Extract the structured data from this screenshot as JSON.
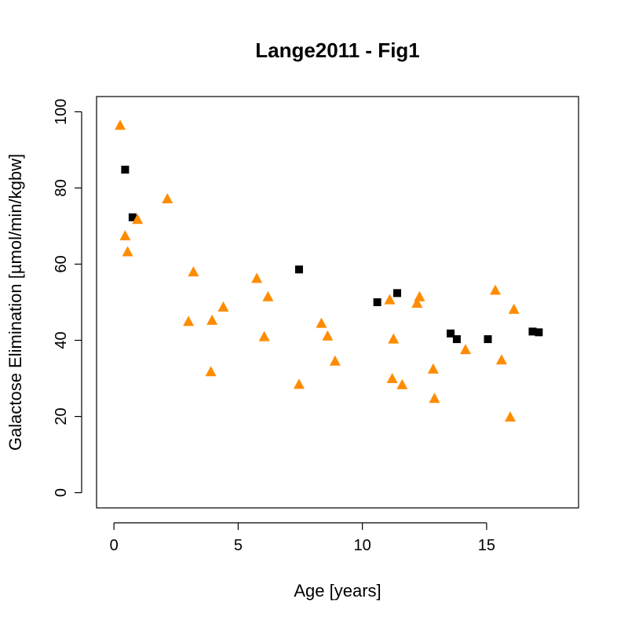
{
  "chart_data": {
    "type": "scatter",
    "title": "Lange2011 - Fig1",
    "xlabel": "Age [years]",
    "ylabel": "Galactose Elimination [µmol/min/kgbw]",
    "xlim": [
      -0.7,
      18.7
    ],
    "ylim": [
      -4,
      104
    ],
    "xticks": [
      0,
      5,
      10,
      15
    ],
    "yticks": [
      0,
      20,
      40,
      60,
      80,
      100
    ],
    "x_tick_labels": [
      "0",
      "5",
      "10",
      "15"
    ],
    "y_tick_labels": [
      "0",
      "20",
      "40",
      "60",
      "80",
      "100"
    ],
    "grid": false,
    "series": [
      {
        "marker": "square",
        "color": "#000000",
        "points": [
          [
            0.45,
            84.8
          ],
          [
            0.75,
            72.3
          ],
          [
            7.45,
            58.6
          ],
          [
            10.6,
            50.0
          ],
          [
            11.4,
            52.4
          ],
          [
            13.55,
            41.8
          ],
          [
            13.8,
            40.3
          ],
          [
            15.05,
            40.3
          ],
          [
            16.85,
            42.3
          ],
          [
            17.1,
            42.1
          ]
        ]
      },
      {
        "marker": "triangle",
        "color": "#ff8c00",
        "points": [
          [
            0.25,
            96.5
          ],
          [
            0.45,
            67.5
          ],
          [
            0.55,
            63.3
          ],
          [
            0.95,
            71.8
          ],
          [
            2.15,
            77.2
          ],
          [
            3.0,
            45.0
          ],
          [
            3.2,
            58.0
          ],
          [
            3.9,
            31.8
          ],
          [
            3.95,
            45.3
          ],
          [
            4.4,
            48.8
          ],
          [
            5.75,
            56.3
          ],
          [
            6.05,
            41.0
          ],
          [
            6.2,
            51.5
          ],
          [
            7.45,
            28.5
          ],
          [
            8.35,
            44.5
          ],
          [
            8.6,
            41.2
          ],
          [
            8.9,
            34.6
          ],
          [
            11.1,
            50.7
          ],
          [
            11.2,
            30.0
          ],
          [
            11.25,
            40.4
          ],
          [
            11.6,
            28.4
          ],
          [
            12.2,
            49.8
          ],
          [
            12.3,
            51.5
          ],
          [
            12.85,
            32.5
          ],
          [
            12.9,
            24.8
          ],
          [
            14.15,
            37.6
          ],
          [
            15.35,
            53.2
          ],
          [
            15.6,
            34.9
          ],
          [
            15.95,
            19.9
          ],
          [
            16.1,
            48.2
          ]
        ]
      }
    ]
  }
}
